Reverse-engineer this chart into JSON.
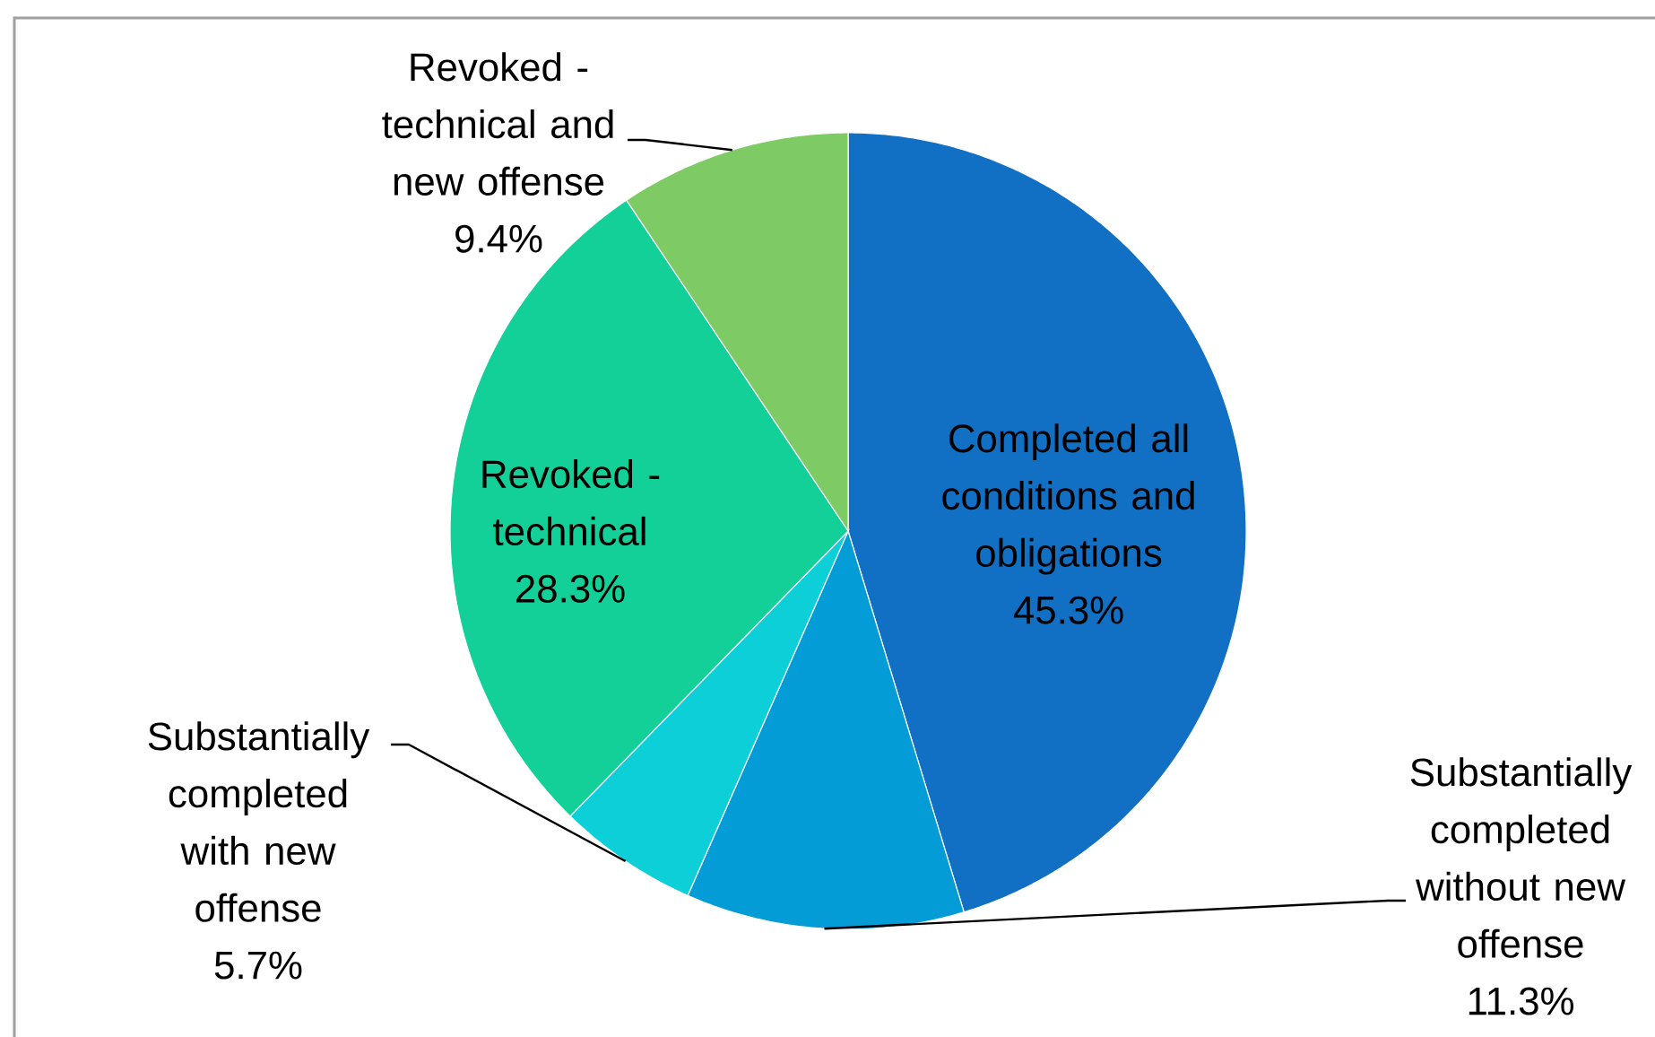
{
  "chart_data": {
    "type": "pie",
    "categories": [
      "Completed all conditions and obligations",
      "Substantially completed without new offense",
      "Substantially completed with new offense",
      "Revoked - technical",
      "Revoked - technical and new offense"
    ],
    "values": [
      45.3,
      11.3,
      5.7,
      28.3,
      9.4
    ],
    "colors": [
      "#1170c4",
      "#049cd6",
      "#0dcfd8",
      "#13cf98",
      "#7ecb66"
    ],
    "value_labels": [
      "45.3%",
      "11.3%",
      "5.7%",
      "28.3%",
      "9.4%"
    ]
  }
}
